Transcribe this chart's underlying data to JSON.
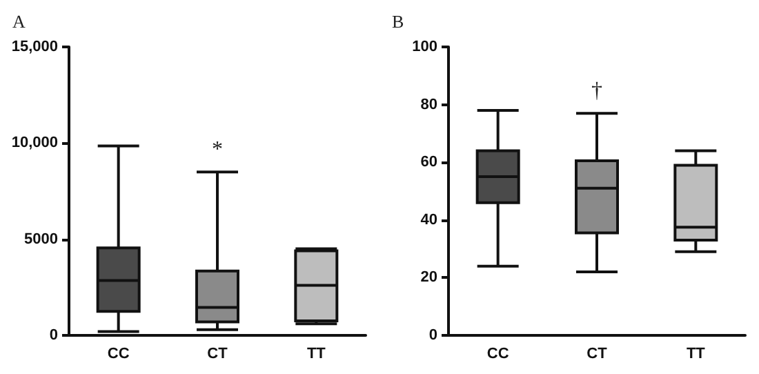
{
  "chart_data": [
    {
      "type": "box",
      "title": "A",
      "categories": [
        "CC",
        "CT",
        "TT"
      ],
      "colors": [
        "#4a4a4a",
        "#8a8a8a",
        "#bdbdbd"
      ],
      "boxes": [
        {
          "low": 200,
          "q1": 1250,
          "median": 2850,
          "q3": 4550,
          "high": 9850
        },
        {
          "low": 300,
          "q1": 700,
          "median": 1450,
          "q3": 3350,
          "high": 8500
        },
        {
          "low": 600,
          "q1": 750,
          "median": 2600,
          "q3": 4400,
          "high": 4500
        }
      ],
      "ylim": [
        0,
        15000
      ],
      "yticks": [
        0,
        5000,
        {
          "value": 10000,
          "label": "10,000"
        },
        {
          "value": 15000,
          "label": "15,000"
        }
      ],
      "grid": false,
      "annotations": [
        "*"
      ]
    },
    {
      "type": "box",
      "title": "B",
      "categories": [
        "CC",
        "CT",
        "TT"
      ],
      "colors": [
        "#4a4a4a",
        "#8a8a8a",
        "#bdbdbd"
      ],
      "boxes": [
        {
          "low": 24,
          "q1": 46,
          "median": 55,
          "q3": 64,
          "high": 78
        },
        {
          "low": 22,
          "q1": 35.5,
          "median": 51,
          "q3": 60.5,
          "high": 77
        },
        {
          "low": 29,
          "q1": 33,
          "median": 37.5,
          "q3": 59,
          "high": 64
        }
      ],
      "ylim": [
        0,
        100
      ],
      "yticks": [
        0,
        20,
        40,
        60,
        80,
        100
      ],
      "grid": false,
      "annotations": [
        "†"
      ]
    }
  ]
}
